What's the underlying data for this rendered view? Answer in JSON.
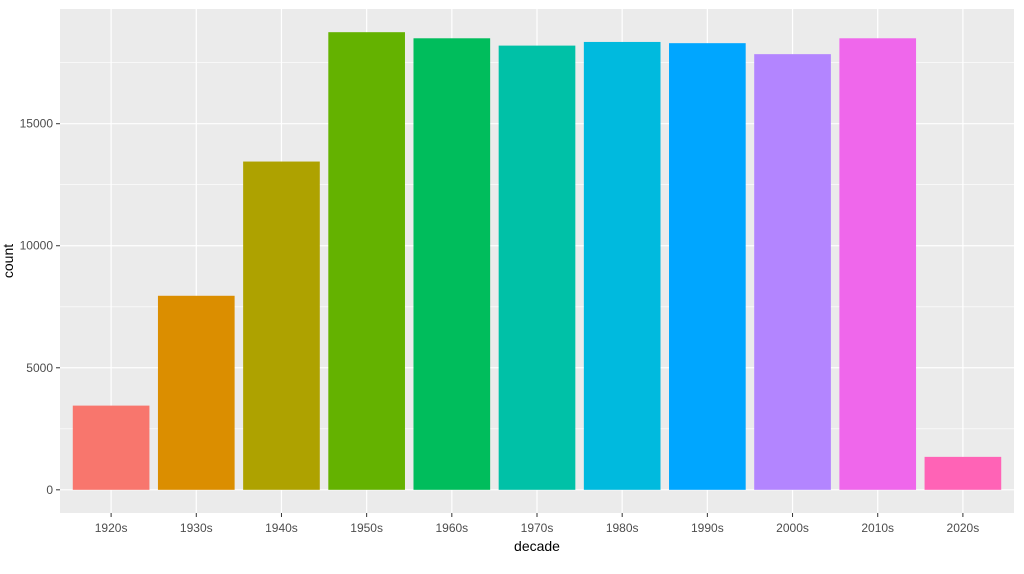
{
  "chart_data": {
    "type": "bar",
    "title": "",
    "xlabel": "decade",
    "ylabel": "count",
    "categories": [
      "1920s",
      "1930s",
      "1940s",
      "1950s",
      "1960s",
      "1970s",
      "1980s",
      "1990s",
      "2000s",
      "2010s",
      "2020s"
    ],
    "values": [
      3450,
      7950,
      13450,
      18750,
      18500,
      18200,
      18350,
      18300,
      17850,
      18500,
      1350
    ],
    "colors": [
      "#F8766D",
      "#DB8E00",
      "#AEA200",
      "#64B200",
      "#00BD5C",
      "#00C1A7",
      "#00BADE",
      "#00A6FF",
      "#B385FF",
      "#EF67EB",
      "#FF63B6"
    ],
    "yticks": [
      0,
      5000,
      10000,
      15000
    ],
    "ylim": [
      -950,
      19700
    ],
    "grid": true,
    "legend": "none",
    "panel_background": "#EBEBEB",
    "gridline_color": "#FFFFFF"
  }
}
